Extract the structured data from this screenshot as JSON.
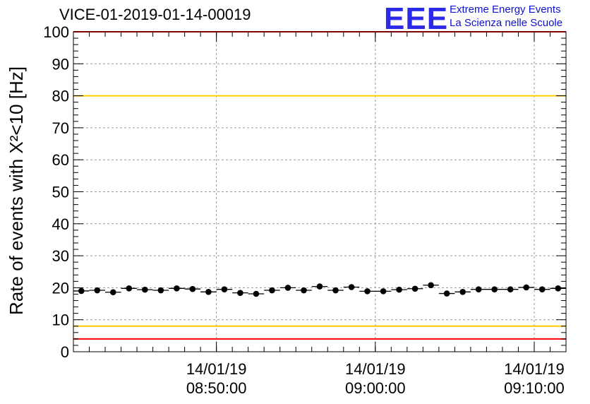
{
  "header": {
    "title": "VICE-01-2019-01-14-00019",
    "logo_mark": "EEE",
    "logo_line1": "Extreme Energy Events",
    "logo_line2": "La Scienza nelle Scuole"
  },
  "chart_data": {
    "type": "scatter",
    "title": "VICE-01-2019-01-14-00019",
    "ylabel": "Rate of events with X²<10 [Hz]",
    "xlabel": "",
    "ylim": [
      0,
      100
    ],
    "xlim": [
      "08:41:00",
      "09:12:00"
    ],
    "y_ticks": [
      0,
      10,
      20,
      30,
      40,
      50,
      60,
      70,
      80,
      90,
      100
    ],
    "x_ticks": [
      {
        "date": "14/01/19",
        "time": "08:50:00"
      },
      {
        "date": "14/01/19",
        "time": "09:00:00"
      },
      {
        "date": "14/01/19",
        "time": "09:10:00"
      }
    ],
    "grid": true,
    "reference_lines": [
      {
        "y": 100,
        "color": "#ff0000"
      },
      {
        "y": 80,
        "color": "#ffcc00"
      },
      {
        "y": 8,
        "color": "#ffcc00"
      },
      {
        "y": 4,
        "color": "#ff0000"
      }
    ],
    "series": [
      {
        "marker_color": "#000000",
        "x": [
          "08:41:30",
          "08:42:30",
          "08:43:30",
          "08:44:30",
          "08:45:30",
          "08:46:30",
          "08:47:30",
          "08:48:30",
          "08:49:30",
          "08:50:30",
          "08:51:30",
          "08:52:30",
          "08:53:30",
          "08:54:30",
          "08:55:30",
          "08:56:30",
          "08:57:30",
          "08:58:30",
          "08:59:30",
          "09:00:30",
          "09:01:30",
          "09:02:30",
          "09:03:30",
          "09:04:30",
          "09:05:30",
          "09:06:30",
          "09:07:30",
          "09:08:30",
          "09:09:30",
          "09:10:30",
          "09:11:30"
        ],
        "y": [
          19.0,
          19.2,
          18.6,
          19.8,
          19.4,
          19.2,
          19.8,
          19.6,
          18.7,
          19.5,
          18.4,
          18.1,
          19.2,
          20.0,
          19.2,
          20.4,
          19.2,
          20.2,
          18.9,
          18.9,
          19.4,
          19.7,
          20.8,
          18.2,
          18.7,
          19.5,
          19.5,
          19.5,
          20.1,
          19.5,
          19.8
        ]
      }
    ]
  }
}
